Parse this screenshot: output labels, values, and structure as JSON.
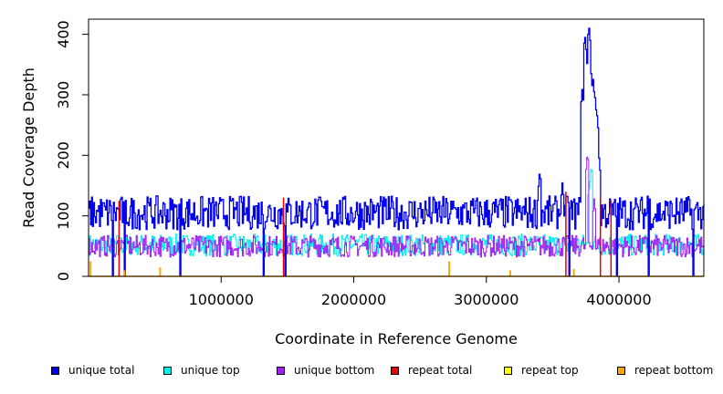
{
  "chart_data": {
    "type": "line",
    "xlabel": "Coordinate in Reference Genome",
    "ylabel": "Read Coverage Depth",
    "xlim": [
      0,
      4640000
    ],
    "ylim": [
      0,
      425
    ],
    "x_ticks": [
      1000000,
      2000000,
      3000000,
      4000000
    ],
    "x_tick_labels": [
      "1000000",
      "2000000",
      "3000000",
      "4000000"
    ],
    "y_ticks": [
      0,
      100,
      200,
      300,
      400
    ],
    "y_tick_labels": [
      "0",
      "100",
      "200",
      "300",
      "400"
    ],
    "grid": false,
    "legend_position": "bottom",
    "series": [
      {
        "name": "unique total",
        "color": "#0000ee",
        "baseline": 105,
        "spread": 28,
        "features": [
          {
            "x": 3720000,
            "y": 310
          },
          {
            "x": 3740000,
            "y": 400
          },
          {
            "x": 3760000,
            "y": 360
          },
          {
            "x": 3770000,
            "y": 415
          },
          {
            "x": 3785000,
            "y": 340
          },
          {
            "x": 3800000,
            "y": 330
          },
          {
            "x": 3815000,
            "y": 300
          },
          {
            "x": 3830000,
            "y": 270
          },
          {
            "x": 3845000,
            "y": 200
          },
          {
            "x": 3400000,
            "y": 175
          },
          {
            "x": 3570000,
            "y": 155
          },
          {
            "x": 4220000,
            "y": 150
          }
        ],
        "dropouts": [
          180000,
          270000,
          690000,
          1320000,
          1480000,
          3620000,
          3980000,
          4220000,
          4560000
        ]
      },
      {
        "name": "unique top",
        "color": "#00eeee",
        "baseline": 52,
        "spread": 18,
        "features": [
          {
            "x": 3790000,
            "y": 185
          },
          {
            "x": 3770000,
            "y": 150
          }
        ]
      },
      {
        "name": "unique bottom",
        "color": "#a020f0",
        "baseline": 50,
        "spread": 18,
        "features": [
          {
            "x": 3760000,
            "y": 205
          },
          {
            "x": 3810000,
            "y": 130
          }
        ]
      },
      {
        "name": "repeat total",
        "color": "#ee0000",
        "spikes": [
          {
            "x": 230000,
            "y": 125
          },
          {
            "x": 1470000,
            "y": 130
          },
          {
            "x": 3600000,
            "y": 140
          },
          {
            "x": 3860000,
            "y": 130
          },
          {
            "x": 3940000,
            "y": 125
          }
        ]
      },
      {
        "name": "repeat top",
        "color": "#ffff00",
        "spikes": []
      },
      {
        "name": "repeat bottom",
        "color": "#ffa500",
        "baseline": 0,
        "spikes": [
          {
            "x": 15000,
            "y": 25
          },
          {
            "x": 270000,
            "y": 10
          },
          {
            "x": 540000,
            "y": 15
          },
          {
            "x": 2720000,
            "y": 25
          },
          {
            "x": 3180000,
            "y": 10
          },
          {
            "x": 3660000,
            "y": 12
          }
        ]
      }
    ]
  }
}
